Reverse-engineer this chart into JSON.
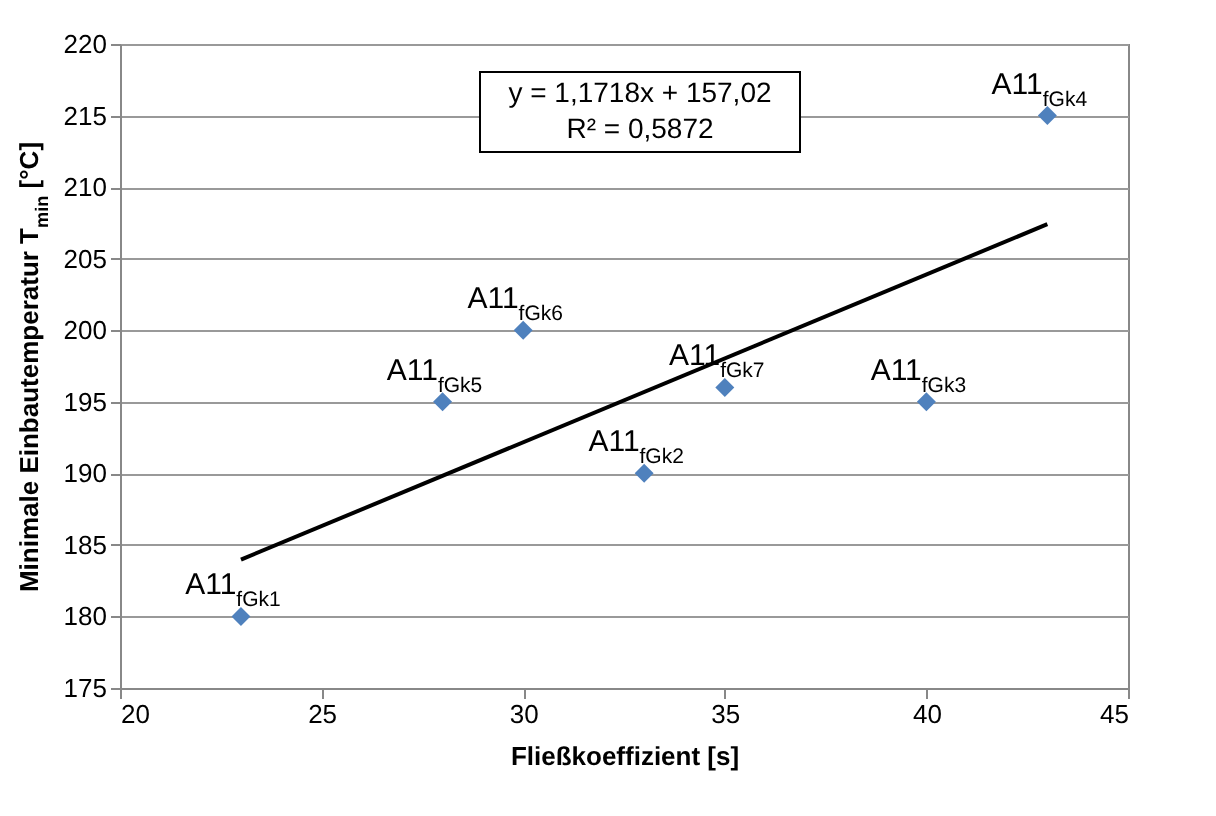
{
  "chart_data": {
    "type": "scatter",
    "xlabel": "Fließkoeffizient [s]",
    "ylabel": "Minimale Einbautemperatur T$_{min}$ [°C]",
    "series": [
      {
        "type": "scatter",
        "color": "#4f81bd",
        "x": [
          23,
          33,
          40,
          43,
          28,
          30,
          35
        ],
        "values": [
          180,
          190,
          195,
          215,
          195,
          200,
          196
        ],
        "marker": "diamond"
      },
      {
        "type": "line",
        "color": "#000000",
        "x": [
          23,
          43
        ],
        "values": [
          183.97,
          207.41
        ],
        "marker": "none"
      }
    ],
    "annotations": [
      {
        "text": "A11$_{fGk1}$",
        "x": 23,
        "y": 180
      },
      {
        "text": "A11$_{fGk2}$",
        "x": 33,
        "y": 190
      },
      {
        "text": "A11$_{fGk3}$",
        "x": 40,
        "y": 195
      },
      {
        "text": "A11$_{fGk4}$",
        "x": 43,
        "y": 215
      },
      {
        "text": "A11$_{fGk5}$",
        "x": 28,
        "y": 195
      },
      {
        "text": "A11$_{fGk6}$",
        "x": 30,
        "y": 200
      },
      {
        "text": "A11$_{fGk7}$",
        "x": 35,
        "y": 196
      },
      "y = 1,1718x + 157,02",
      "R² = 0,5872"
    ],
    "xlim": [
      20,
      45
    ],
    "xticks": [
      20,
      25,
      30,
      35,
      40,
      45
    ],
    "ylim": [
      175,
      220
    ],
    "yticks": [
      175,
      180,
      185,
      190,
      195,
      200,
      205,
      210,
      215,
      220
    ],
    "grid": "y"
  }
}
